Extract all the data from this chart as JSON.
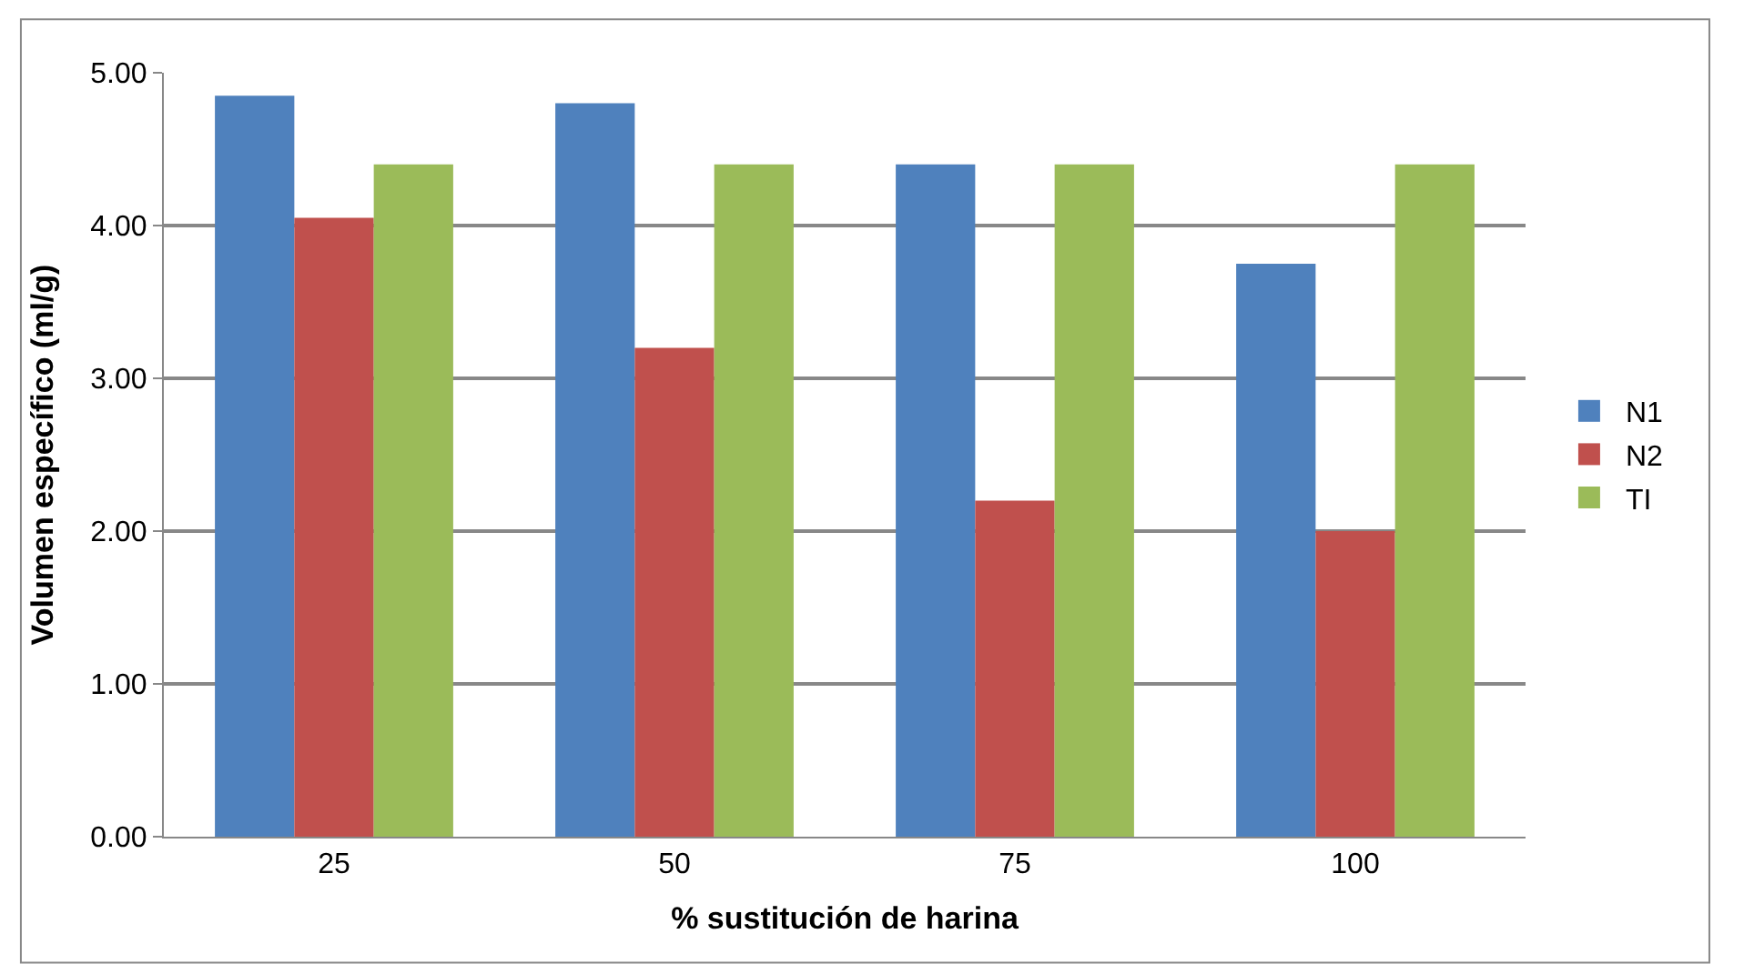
{
  "chart_data": {
    "type": "bar",
    "xlabel": "% sustitución de harina",
    "ylabel": "Volumen específico (ml/g)",
    "categories": [
      "25",
      "50",
      "75",
      "100"
    ],
    "series": [
      {
        "name": "N1",
        "color": "#4f81bd",
        "values": [
          4.85,
          4.8,
          4.4,
          3.75
        ]
      },
      {
        "name": "N2",
        "color": "#c0504d",
        "values": [
          4.05,
          3.2,
          2.2,
          2.0
        ]
      },
      {
        "name": "TI",
        "color": "#9bbb59",
        "values": [
          4.4,
          4.4,
          4.4,
          4.4
        ]
      }
    ],
    "ylim": [
      0,
      5
    ],
    "yticks": [
      {
        "value": 0,
        "label": "0.00"
      },
      {
        "value": 1,
        "label": "1.00"
      },
      {
        "value": 2,
        "label": "2.00"
      },
      {
        "value": 3,
        "label": "3.00"
      },
      {
        "value": 4,
        "label": "4.00"
      },
      {
        "value": 5,
        "label": "5.00"
      }
    ],
    "grid": "y",
    "legend": "right"
  }
}
